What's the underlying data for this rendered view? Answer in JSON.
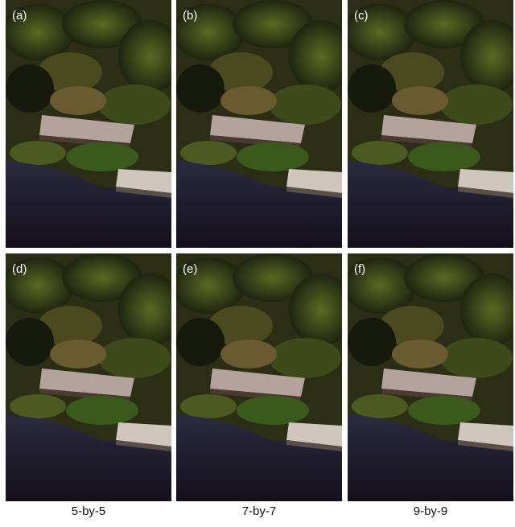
{
  "panels": [
    {
      "label": "(a)"
    },
    {
      "label": "(b)"
    },
    {
      "label": "(c)"
    },
    {
      "label": "(d)"
    },
    {
      "label": "(e)"
    },
    {
      "label": "(f)"
    }
  ],
  "captions": [
    "5-by-5",
    "7-by-7",
    "9-by-9"
  ]
}
